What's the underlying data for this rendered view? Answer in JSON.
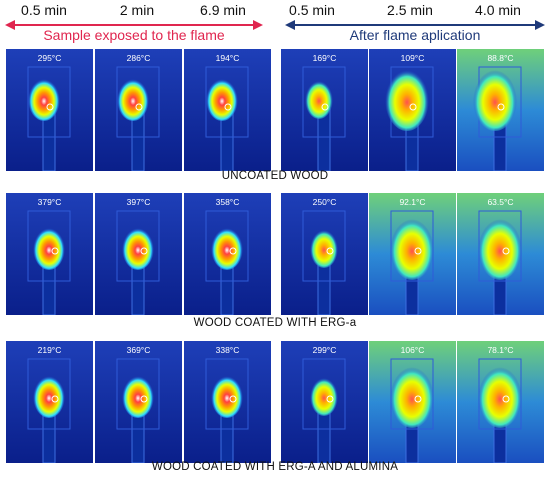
{
  "times": [
    "0.5 min",
    "2 min",
    "6.9 min",
    "0.5 min",
    "2.5 min",
    "4.0 min"
  ],
  "groups": {
    "left": "Sample exposed to the flame",
    "right": "After flame aplication"
  },
  "colors": {
    "left_arrow": "#e0264f",
    "right_arrow": "#1f3a7a"
  },
  "rows": [
    {
      "label": "UNCOATED WOOD",
      "temps": [
        "295°C",
        "286°C",
        "194°C",
        "169°C",
        "109°C",
        "88.8°C"
      ]
    },
    {
      "label": "WOOD COATED WITH ERG-a",
      "temps": [
        "379°C",
        "397°C",
        "358°C",
        "250°C",
        "92.1°C",
        "63.5°C"
      ]
    },
    {
      "label": "WOOD COATED WITH ERG-A AND ALUMINA",
      "temps": [
        "219°C",
        "369°C",
        "338°C",
        "299°C",
        "106°C",
        "78.1°C"
      ]
    }
  ]
}
